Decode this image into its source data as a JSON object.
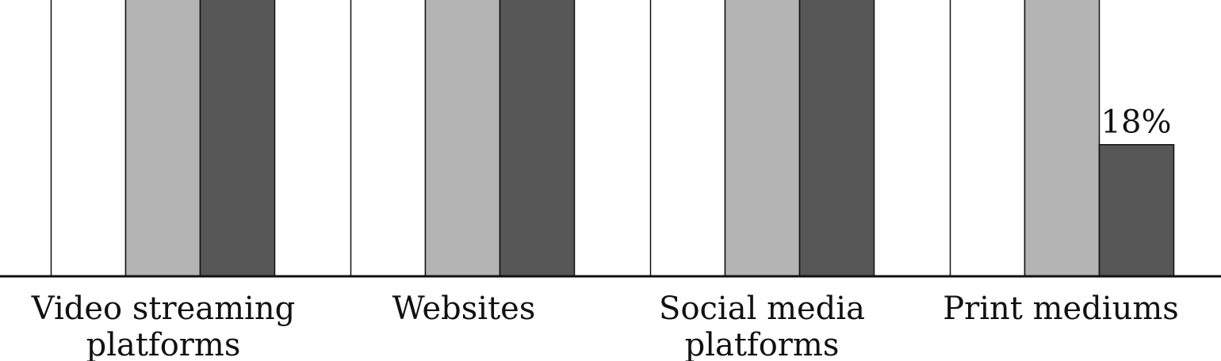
{
  "chart_data": {
    "type": "bar",
    "categories": [
      [
        "Video streaming",
        "platforms"
      ],
      [
        "Websites"
      ],
      [
        "Social media",
        "platforms"
      ],
      [
        "Print mediums"
      ]
    ],
    "series": [
      {
        "color": "#ffffff",
        "values": [
          null,
          null,
          null,
          null
        ]
      },
      {
        "color": "#b4b4b4",
        "values": [
          null,
          null,
          null,
          null
        ]
      },
      {
        "color": "#575757",
        "values": [
          null,
          null,
          null,
          18
        ]
      }
    ],
    "data_labels": [
      {
        "series": 2,
        "category": 3,
        "text": "18%"
      }
    ],
    "ylim_visible": [
      0,
      38
    ],
    "grid": false,
    "legend": "none"
  }
}
